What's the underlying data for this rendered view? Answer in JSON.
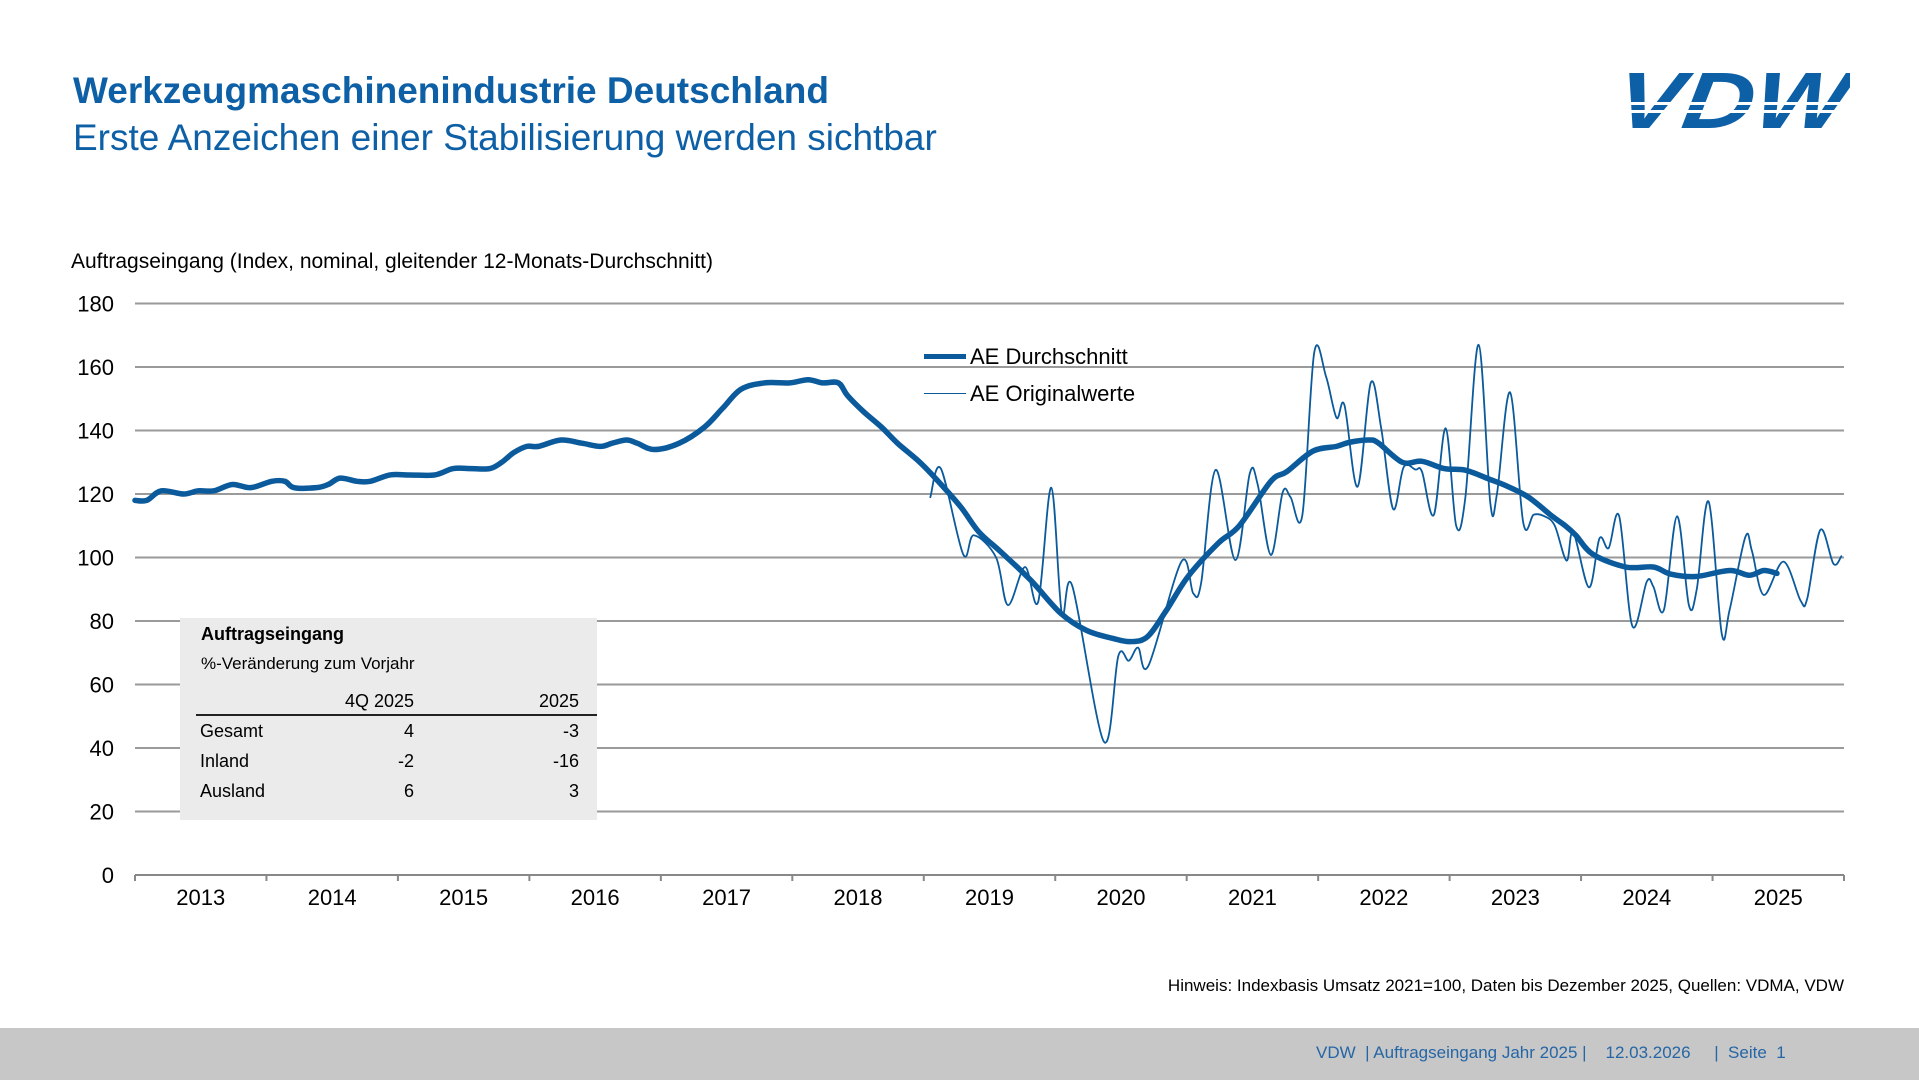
{
  "header": {
    "title": "Werkzeugmaschinenindustrie Deutschland",
    "subtitle": "Erste Anzeichen einer Stabilisierung werden sichtbar",
    "logo_text": "VDW"
  },
  "colors": {
    "brand_blue": "#0d5fa6",
    "series_blue": "#0a5a9c",
    "grid": "#9a9a9a",
    "footer_bg": "#c7c7c7"
  },
  "info_table": {
    "title": "Auftragseingang",
    "subtitle": "%-Veränderung zum Vorjahr",
    "columns": [
      "",
      "4Q 2025",
      "2025"
    ],
    "rows": [
      {
        "label": "Gesamt",
        "q": "4",
        "y": "-3"
      },
      {
        "label": "Inland",
        "q": "-2",
        "y": "-16"
      },
      {
        "label": "Ausland",
        "q": "6",
        "y": "3"
      }
    ]
  },
  "note": "Hinweis: Indexbasis Umsatz 2021=100, Daten bis Dezember 2025, Quellen: VDMA, VDW",
  "footer": {
    "text": "VDW  | Auftragseingang Jahr 2025 |    12.03.2026     |  Seite  1"
  },
  "chart_data": {
    "type": "line",
    "title": "",
    "ylabel": "Auftragseingang (Index, nominal, gleitender 12-Monats-Durchschnitt)",
    "xlabel": "",
    "ylim": [
      0,
      180
    ],
    "yticks": [
      0,
      20,
      40,
      60,
      80,
      100,
      120,
      140,
      160,
      180
    ],
    "xlim": [
      2013,
      2026
    ],
    "xtick_labels": [
      "2013",
      "2014",
      "2015",
      "2016",
      "2017",
      "2018",
      "2019",
      "2020",
      "2021",
      "2022",
      "2023",
      "2024",
      "2025"
    ],
    "grid": true,
    "legend_position": "top-center",
    "series": [
      {
        "name": "AE Durchschnitt",
        "style": "thick",
        "x": [
          2013.0,
          2013.09,
          2013.2,
          2013.37,
          2013.48,
          2013.6,
          2013.74,
          2013.88,
          2014.04,
          2014.14,
          2014.21,
          2014.38,
          2014.47,
          2014.56,
          2014.69,
          2014.79,
          2014.94,
          2015.09,
          2015.28,
          2015.42,
          2015.56,
          2015.7,
          2015.79,
          2015.88,
          2015.98,
          2016.07,
          2016.24,
          2016.4,
          2016.54,
          2016.63,
          2016.74,
          2016.82,
          2016.95,
          2017.14,
          2017.33,
          2017.47,
          2017.61,
          2017.79,
          2017.98,
          2018.12,
          2018.23,
          2018.35,
          2018.42,
          2018.54,
          2018.68,
          2018.8,
          2018.97,
          2019.11,
          2019.28,
          2019.42,
          2019.58,
          2019.81,
          2020.04,
          2020.24,
          2020.44,
          2020.57,
          2020.7,
          2020.84,
          2021.01,
          2021.24,
          2021.4,
          2021.64,
          2021.76,
          2021.96,
          2022.14,
          2022.24,
          2022.39,
          2022.46,
          2022.64,
          2022.79,
          2022.96,
          2023.12,
          2023.3,
          2023.43,
          2023.6,
          2023.78,
          2023.88,
          2023.96,
          2024.09,
          2024.34,
          2024.55,
          2024.68,
          2024.87,
          2025.13,
          2025.28,
          2025.39,
          2025.49
        ],
        "y": [
          118,
          118,
          121,
          120,
          121,
          121,
          123,
          122,
          124,
          124,
          122,
          122,
          123,
          125,
          124,
          124,
          126,
          126,
          126,
          128,
          128,
          128,
          130,
          133,
          135,
          135,
          137,
          136,
          135,
          136,
          137,
          136,
          134,
          136,
          141,
          147,
          153,
          155,
          155,
          156,
          155,
          155,
          151,
          146,
          141,
          136,
          130,
          124,
          116,
          108,
          102,
          93,
          82.5,
          77,
          74.5,
          73.5,
          75,
          83,
          94,
          104.5,
          110,
          124,
          127,
          133.5,
          135,
          136.3,
          137,
          136,
          130,
          130.3,
          128,
          127.5,
          124.7,
          122.6,
          119,
          113,
          110,
          107,
          101,
          97,
          97,
          94.8,
          94,
          95.9,
          94.4,
          95.9,
          95
        ]
      },
      {
        "name": "AE Originalwerte",
        "style": "thin",
        "x": [
          2019.05,
          2019.13,
          2019.3,
          2019.38,
          2019.55,
          2019.64,
          2019.77,
          2019.87,
          2019.97,
          2020.05,
          2020.13,
          2020.37,
          2020.48,
          2020.56,
          2020.63,
          2020.71,
          2020.96,
          2021.05,
          2021.11,
          2021.22,
          2021.37,
          2021.48,
          2021.54,
          2021.64,
          2021.73,
          2021.79,
          2021.88,
          2021.97,
          2022.06,
          2022.14,
          2022.2,
          2022.3,
          2022.4,
          2022.48,
          2022.57,
          2022.65,
          2022.74,
          2022.79,
          2022.88,
          2022.97,
          2023.05,
          2023.12,
          2023.22,
          2023.31,
          2023.36,
          2023.46,
          2023.56,
          2023.64,
          2023.72,
          2023.8,
          2023.89,
          2023.94,
          2024.06,
          2024.14,
          2024.21,
          2024.29,
          2024.39,
          2024.5,
          2024.55,
          2024.63,
          2024.73,
          2024.82,
          2024.88,
          2024.97,
          2025.07,
          2025.13,
          2025.25,
          2025.3,
          2025.39,
          2025.54,
          2025.67,
          2025.72,
          2025.82,
          2025.92,
          2025.98
        ],
        "y": [
          119,
          128,
          101,
          107,
          100,
          85,
          97,
          86,
          122,
          82.5,
          91,
          42,
          69,
          67.5,
          71.6,
          66,
          98.7,
          88.7,
          92,
          127.6,
          99.2,
          126.5,
          123,
          100.8,
          120.5,
          119,
          113.4,
          164.5,
          157,
          144,
          148,
          122.3,
          155,
          140.6,
          115.3,
          128.4,
          127.7,
          127,
          113.4,
          140.7,
          110,
          119,
          167,
          117,
          120,
          152,
          111,
          113.5,
          113,
          110,
          99,
          108,
          90.6,
          106,
          103,
          113,
          78.4,
          92.4,
          90.8,
          83.5,
          113,
          85,
          90,
          117.6,
          76,
          83.5,
          106.5,
          102,
          88.2,
          98.7,
          86.4,
          87,
          108.7,
          98,
          100.4
        ]
      }
    ]
  }
}
